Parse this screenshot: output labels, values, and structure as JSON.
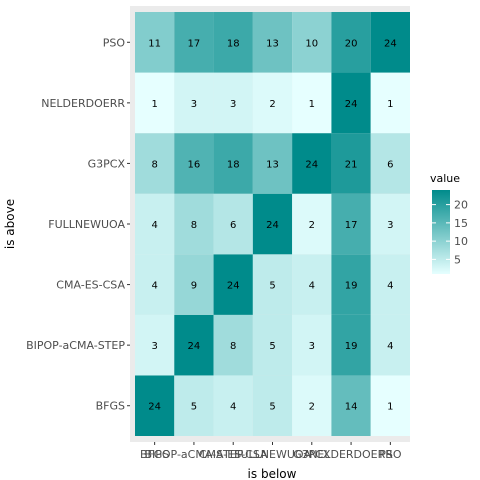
{
  "chart_data": {
    "type": "heatmap",
    "xlabel": "is below",
    "ylabel": "is above",
    "x_categories": [
      "BFGS",
      "BIPOP-aCMA-STEP",
      "CMA-ES-CSA",
      "FULLNEWUOA",
      "G3PCX",
      "NELDERDOERR",
      "PSO"
    ],
    "y_categories": [
      "BFGS",
      "BIPOP-aCMA-STEP",
      "CMA-ES-CSA",
      "FULLNEWUOA",
      "G3PCX",
      "NELDERDOERR",
      "PSO"
    ],
    "values": [
      [
        24,
        5,
        4,
        5,
        2,
        14,
        1
      ],
      [
        3,
        24,
        8,
        5,
        3,
        19,
        4
      ],
      [
        4,
        9,
        24,
        5,
        4,
        19,
        4
      ],
      [
        4,
        8,
        6,
        24,
        2,
        17,
        3
      ],
      [
        8,
        16,
        18,
        13,
        24,
        21,
        6
      ],
      [
        1,
        3,
        3,
        2,
        1,
        24,
        1
      ],
      [
        11,
        17,
        18,
        13,
        10,
        20,
        24
      ]
    ],
    "legend": {
      "title": "value",
      "ticks": [
        5,
        10,
        15,
        20
      ],
      "range": [
        1,
        24
      ],
      "low_color": "#e6ffff",
      "high_color": "#008b8b"
    },
    "panel_background": "#ebebeb",
    "grid": true,
    "legend_placement": "right"
  }
}
